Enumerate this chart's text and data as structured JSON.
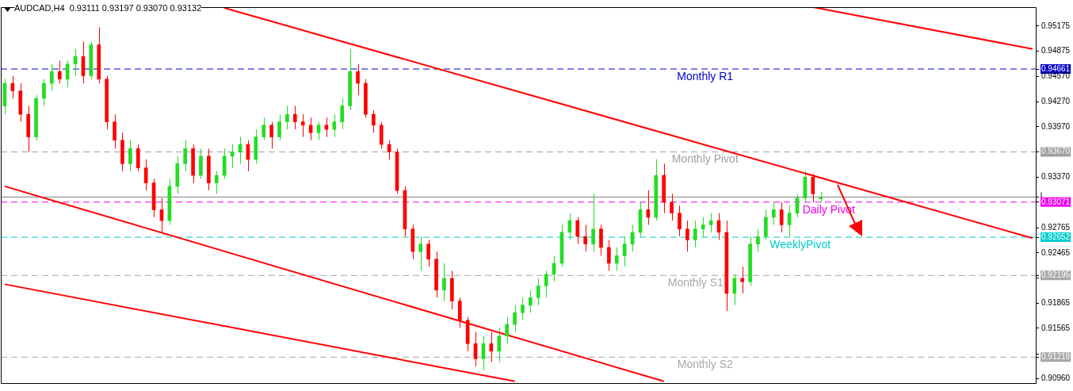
{
  "chart_data": {
    "type": "candlestick",
    "title": "AUDCAD,H4  0.93111 0.93197 0.93070 0.93132",
    "categories": [
      null,
      null,
      null,
      null,
      null,
      null,
      null,
      null,
      null,
      null,
      null,
      null,
      null,
      null,
      null,
      null,
      null,
      null,
      null,
      null,
      null,
      null,
      null,
      null,
      null,
      null,
      null,
      null,
      null,
      null,
      null,
      null,
      null,
      null,
      null,
      null,
      null,
      null,
      null,
      null,
      null,
      null,
      null,
      null,
      null,
      null,
      null,
      null,
      null,
      null,
      null,
      null,
      null,
      null,
      null,
      null,
      null,
      null,
      null,
      null,
      null,
      null,
      null,
      null,
      null,
      null,
      null,
      null,
      null,
      null,
      null,
      null,
      null,
      null,
      null,
      null,
      null,
      null,
      null,
      null,
      null,
      null,
      null,
      null,
      null,
      null,
      null,
      null,
      null,
      null,
      null,
      null,
      null,
      null,
      null,
      null,
      null,
      null,
      null,
      null,
      null,
      null,
      null,
      null,
      null,
      null,
      null,
      null,
      null,
      null,
      null,
      null,
      null,
      null,
      null,
      null,
      null,
      null,
      null,
      null,
      null,
      null,
      null,
      null,
      null,
      null,
      null,
      null,
      null,
      null,
      null,
      null
    ],
    "ohlc": [
      [
        0.9422,
        0.9454,
        0.9412,
        0.9449
      ],
      [
        0.9449,
        0.9458,
        0.9431,
        0.944
      ],
      [
        0.944,
        0.9449,
        0.9403,
        0.9412
      ],
      [
        0.9412,
        0.9422,
        0.9367,
        0.9385
      ],
      [
        0.9385,
        0.9435,
        0.9381,
        0.9431
      ],
      [
        0.9431,
        0.9454,
        0.9422,
        0.9449
      ],
      [
        0.9449,
        0.9472,
        0.944,
        0.9463
      ],
      [
        0.9463,
        0.9476,
        0.9449,
        0.9454
      ],
      [
        0.9454,
        0.9476,
        0.9444,
        0.9472
      ],
      [
        0.9472,
        0.949,
        0.9458,
        0.9481
      ],
      [
        0.9481,
        0.9499,
        0.9449,
        0.9458
      ],
      [
        0.9458,
        0.9499,
        0.9454,
        0.9495
      ],
      [
        0.9495,
        0.9516,
        0.9449,
        0.9454
      ],
      [
        0.9454,
        0.9458,
        0.9394,
        0.9403
      ],
      [
        0.9403,
        0.9412,
        0.9371,
        0.9381
      ],
      [
        0.9381,
        0.939,
        0.9344,
        0.9353
      ],
      [
        0.9353,
        0.9381,
        0.9344,
        0.9371
      ],
      [
        0.9371,
        0.9376,
        0.9344,
        0.9348
      ],
      [
        0.9348,
        0.9358,
        0.9321,
        0.933
      ],
      [
        0.933,
        0.9335,
        0.9289,
        0.9298
      ],
      [
        0.9298,
        0.9312,
        0.9271,
        0.9285
      ],
      [
        0.9285,
        0.9335,
        0.928,
        0.9326
      ],
      [
        0.9326,
        0.9362,
        0.9317,
        0.9353
      ],
      [
        0.9353,
        0.9381,
        0.9344,
        0.9371
      ],
      [
        0.9371,
        0.9376,
        0.933,
        0.9339
      ],
      [
        0.9339,
        0.9371,
        0.9335,
        0.9362
      ],
      [
        0.9362,
        0.9371,
        0.9321,
        0.933
      ],
      [
        0.933,
        0.9344,
        0.9317,
        0.9339
      ],
      [
        0.9339,
        0.9371,
        0.9335,
        0.9362
      ],
      [
        0.9362,
        0.9376,
        0.9348,
        0.9367
      ],
      [
        0.9367,
        0.9385,
        0.9353,
        0.9376
      ],
      [
        0.9376,
        0.9381,
        0.9344,
        0.9358
      ],
      [
        0.9358,
        0.9394,
        0.9353,
        0.9385
      ],
      [
        0.9385,
        0.9408,
        0.9381,
        0.9399
      ],
      [
        0.9399,
        0.9403,
        0.9371,
        0.9385
      ],
      [
        0.9385,
        0.9412,
        0.9381,
        0.9403
      ],
      [
        0.9403,
        0.9422,
        0.9394,
        0.9412
      ],
      [
        0.9412,
        0.9422,
        0.9394,
        0.9403
      ],
      [
        0.9403,
        0.9412,
        0.9385,
        0.9399
      ],
      [
        0.9399,
        0.9408,
        0.9381,
        0.939
      ],
      [
        0.939,
        0.9403,
        0.9381,
        0.9399
      ],
      [
        0.9399,
        0.9408,
        0.9385,
        0.9394
      ],
      [
        0.9394,
        0.9412,
        0.9385,
        0.9403
      ],
      [
        0.9403,
        0.9431,
        0.9394,
        0.9422
      ],
      [
        0.9422,
        0.949,
        0.9417,
        0.9463
      ],
      [
        0.9463,
        0.9472,
        0.9435,
        0.9449
      ],
      [
        0.9449,
        0.9454,
        0.9408,
        0.9412
      ],
      [
        0.9412,
        0.9417,
        0.939,
        0.9399
      ],
      [
        0.9399,
        0.9403,
        0.9371,
        0.9376
      ],
      [
        0.9376,
        0.9381,
        0.9358,
        0.9367
      ],
      [
        0.9367,
        0.9371,
        0.9317,
        0.9321
      ],
      [
        0.9321,
        0.9326,
        0.9266,
        0.9275
      ],
      [
        0.9275,
        0.928,
        0.9239,
        0.9248
      ],
      [
        0.9248,
        0.9266,
        0.9225,
        0.9257
      ],
      [
        0.9257,
        0.9262,
        0.923,
        0.9239
      ],
      [
        0.9239,
        0.9248,
        0.9193,
        0.9202
      ],
      [
        0.9202,
        0.9234,
        0.9189,
        0.9216
      ],
      [
        0.9216,
        0.9225,
        0.9179,
        0.9189
      ],
      [
        0.9189,
        0.9193,
        0.9157,
        0.9166
      ],
      [
        0.9166,
        0.917,
        0.9129,
        0.9138
      ],
      [
        0.9138,
        0.9152,
        0.9111,
        0.912
      ],
      [
        0.912,
        0.9147,
        0.9106,
        0.9138
      ],
      [
        0.9138,
        0.9152,
        0.9116,
        0.9129
      ],
      [
        0.9129,
        0.9157,
        0.9116,
        0.9147
      ],
      [
        0.9147,
        0.917,
        0.9138,
        0.9161
      ],
      [
        0.9161,
        0.9184,
        0.9152,
        0.9175
      ],
      [
        0.9175,
        0.9193,
        0.9166,
        0.9184
      ],
      [
        0.9184,
        0.9202,
        0.9175,
        0.9193
      ],
      [
        0.9193,
        0.9216,
        0.9184,
        0.9207
      ],
      [
        0.9207,
        0.9225,
        0.9193,
        0.9221
      ],
      [
        0.9221,
        0.9243,
        0.9212,
        0.9234
      ],
      [
        0.9234,
        0.928,
        0.923,
        0.9271
      ],
      [
        0.9271,
        0.9294,
        0.9262,
        0.9285
      ],
      [
        0.9285,
        0.9289,
        0.9257,
        0.9266
      ],
      [
        0.9266,
        0.928,
        0.9248,
        0.9257
      ],
      [
        0.9257,
        0.9317,
        0.9248,
        0.9275
      ],
      [
        0.9275,
        0.928,
        0.9243,
        0.9253
      ],
      [
        0.9253,
        0.9262,
        0.9225,
        0.9234
      ],
      [
        0.9234,
        0.9253,
        0.9225,
        0.9243
      ],
      [
        0.9243,
        0.9266,
        0.923,
        0.9257
      ],
      [
        0.9257,
        0.928,
        0.9248,
        0.9271
      ],
      [
        0.9271,
        0.9307,
        0.9266,
        0.9298
      ],
      [
        0.9298,
        0.9321,
        0.928,
        0.9289
      ],
      [
        0.9289,
        0.9358,
        0.9285,
        0.9339
      ],
      [
        0.9339,
        0.9353,
        0.9294,
        0.9307
      ],
      [
        0.9307,
        0.9317,
        0.9285,
        0.9294
      ],
      [
        0.9294,
        0.9303,
        0.9266,
        0.9275
      ],
      [
        0.9275,
        0.9285,
        0.9248,
        0.9262
      ],
      [
        0.9262,
        0.9285,
        0.9253,
        0.9275
      ],
      [
        0.9275,
        0.9289,
        0.9266,
        0.928
      ],
      [
        0.928,
        0.9294,
        0.9271,
        0.9285
      ],
      [
        0.9285,
        0.9294,
        0.9262,
        0.9271
      ],
      [
        0.9271,
        0.9285,
        0.9177,
        0.9198
      ],
      [
        0.9198,
        0.9221,
        0.9184,
        0.9216
      ],
      [
        0.9216,
        0.923,
        0.9198,
        0.9212
      ],
      [
        0.9212,
        0.9266,
        0.9207,
        0.9257
      ],
      [
        0.9257,
        0.9275,
        0.9248,
        0.9266
      ],
      [
        0.9266,
        0.9298,
        0.9262,
        0.9289
      ],
      [
        0.9289,
        0.9307,
        0.928,
        0.9298
      ],
      [
        0.9298,
        0.9307,
        0.9271,
        0.928
      ],
      [
        0.928,
        0.9303,
        0.9266,
        0.9294
      ],
      [
        0.9294,
        0.9317,
        0.9289,
        0.9312
      ],
      [
        0.9312,
        0.9344,
        0.9307,
        0.9337
      ],
      [
        0.9337,
        0.9341,
        0.9307,
        0.9317
      ],
      [
        0.93111,
        0.93197,
        0.9307,
        0.93132
      ],
      null,
      null,
      null,
      null,
      null,
      null,
      null,
      null,
      null,
      null,
      null,
      null,
      null,
      null,
      null,
      null,
      null,
      null,
      null,
      null,
      null,
      null,
      null,
      null,
      null,
      null,
      null
    ],
    "series": [
      {
        "type": "line",
        "color": "#ff0000",
        "values": [
          null,
          null,
          null,
          null,
          null,
          null,
          null,
          null,
          null,
          null,
          null,
          null,
          null,
          null,
          null,
          null,
          null,
          null,
          null,
          null,
          null,
          null,
          null,
          null,
          null,
          null,
          null,
          null,
          0.9539,
          null,
          null,
          null,
          null,
          null,
          null,
          null,
          null,
          null,
          null,
          null,
          null,
          null,
          null,
          null,
          null,
          null,
          null,
          null,
          null,
          null,
          null,
          null,
          null,
          null,
          null,
          null,
          null,
          null,
          null,
          null,
          null,
          null,
          null,
          null,
          null,
          null,
          null,
          null,
          null,
          null,
          null,
          null,
          null,
          null,
          null,
          null,
          null,
          null,
          null,
          null,
          null,
          null,
          null,
          null,
          null,
          null,
          null,
          null,
          null,
          null,
          null,
          null,
          null,
          null,
          null,
          null,
          null,
          null,
          null,
          null,
          null,
          null,
          null,
          null,
          null,
          null,
          null,
          null,
          null,
          null,
          null,
          null,
          null,
          null,
          null,
          null,
          null,
          null,
          null,
          null,
          null,
          null,
          null,
          null,
          null,
          null,
          null,
          null,
          null,
          null,
          null,
          0.9264
        ]
      },
      {
        "type": "line",
        "color": "#ff0000",
        "values": [
          null,
          null,
          null,
          null,
          null,
          null,
          null,
          null,
          null,
          null,
          null,
          null,
          null,
          null,
          null,
          null,
          null,
          null,
          null,
          null,
          null,
          null,
          null,
          null,
          null,
          null,
          null,
          null,
          null,
          null,
          null,
          null,
          null,
          null,
          null,
          null,
          null,
          null,
          null,
          null,
          null,
          null,
          null,
          null,
          null,
          null,
          null,
          null,
          null,
          null,
          null,
          null,
          null,
          null,
          null,
          null,
          null,
          null,
          null,
          null,
          null,
          null,
          null,
          null,
          null,
          null,
          null,
          null,
          null,
          null,
          null,
          null,
          null,
          null,
          null,
          null,
          null,
          null,
          null,
          null,
          null,
          null,
          null,
          null,
          null,
          null,
          null,
          null,
          null,
          null,
          null,
          null,
          null,
          null,
          null,
          null,
          null,
          null,
          null,
          null,
          null,
          null,
          null,
          0.954,
          null,
          null,
          null,
          null,
          null,
          null,
          null,
          null,
          null,
          null,
          null,
          null,
          null,
          null,
          null,
          null,
          null,
          null,
          null,
          null,
          null,
          null,
          null,
          null,
          null,
          null,
          null,
          0.949
        ]
      },
      {
        "type": "line",
        "color": "#ff0000",
        "values": [
          0.9326,
          null,
          null,
          null,
          null,
          null,
          null,
          null,
          null,
          null,
          null,
          null,
          null,
          null,
          null,
          null,
          null,
          null,
          null,
          null,
          null,
          null,
          null,
          null,
          null,
          null,
          null,
          null,
          null,
          null,
          null,
          null,
          null,
          null,
          null,
          null,
          null,
          null,
          null,
          null,
          null,
          null,
          null,
          null,
          null,
          null,
          null,
          null,
          null,
          null,
          null,
          null,
          null,
          null,
          null,
          null,
          null,
          null,
          null,
          null,
          null,
          null,
          null,
          null,
          null,
          null,
          null,
          null,
          null,
          null,
          null,
          null,
          null,
          null,
          null,
          null,
          null,
          null,
          null,
          null,
          null,
          null,
          null,
          null,
          0.9093,
          null,
          null,
          null,
          null,
          null,
          null,
          null,
          null,
          null,
          null,
          null,
          null,
          null,
          null,
          null,
          null,
          null,
          null,
          null,
          null,
          null,
          null,
          null,
          null,
          null,
          null,
          null,
          null,
          null,
          null,
          null,
          null,
          null,
          null,
          null,
          null,
          null,
          null,
          null,
          null,
          null,
          null,
          null,
          null,
          null,
          null,
          null
        ]
      },
      {
        "type": "line",
        "color": "#ff0000",
        "values": [
          0.9209,
          null,
          null,
          null,
          null,
          null,
          null,
          null,
          null,
          null,
          null,
          null,
          null,
          null,
          null,
          null,
          null,
          null,
          null,
          null,
          null,
          null,
          null,
          null,
          null,
          null,
          null,
          null,
          null,
          null,
          null,
          null,
          null,
          null,
          null,
          null,
          null,
          null,
          null,
          null,
          null,
          null,
          null,
          null,
          null,
          null,
          null,
          null,
          null,
          null,
          null,
          null,
          null,
          null,
          null,
          null,
          null,
          null,
          null,
          null,
          null,
          null,
          null,
          null,
          null,
          0.9093,
          null,
          null,
          null,
          null,
          null,
          null,
          null,
          null,
          null,
          null,
          null,
          null,
          null,
          null,
          null,
          null,
          null,
          null,
          null,
          null,
          null,
          null,
          null,
          null,
          null,
          null,
          null,
          null,
          null,
          null,
          null,
          null,
          null,
          null,
          null,
          null,
          null,
          null,
          null,
          null,
          null,
          null,
          null,
          null,
          null,
          null,
          null,
          null,
          null,
          null,
          null,
          null,
          null,
          null,
          null,
          null,
          null,
          null,
          null,
          null,
          null,
          null,
          null,
          null,
          null,
          null
        ]
      }
    ],
    "ylim": [
      0.909,
      0.954
    ],
    "yticks": [
      {
        "value": 0.95175,
        "label": "0.95175"
      },
      {
        "value": 0.94875,
        "label": "0.94875"
      },
      {
        "value": 0.94661,
        "label": "0.94661"
      },
      {
        "value": 0.9457,
        "label": "0.94570"
      },
      {
        "value": 0.9427,
        "label": "0.94270"
      },
      {
        "value": 0.9397,
        "label": "0.93970"
      },
      {
        "value": 0.9367,
        "label": "0.93670"
      },
      {
        "value": 0.9337,
        "label": "0.93370"
      },
      {
        "value": 0.93132,
        "label": null
      },
      {
        "value": 0.93071,
        "label": "0.93071"
      },
      {
        "value": 0.9307,
        "label": null
      },
      {
        "value": 0.92765,
        "label": "0.92765"
      },
      {
        "value": 0.92652,
        "label": "0.92652"
      },
      {
        "value": 0.92465,
        "label": "0.92465"
      },
      {
        "value": 0.92195,
        "label": "0.92195"
      },
      {
        "value": 0.92165,
        "label": null
      },
      {
        "value": 0.91865,
        "label": "0.91865"
      },
      {
        "value": 0.91565,
        "label": "0.91565"
      },
      {
        "value": 0.9126,
        "label": null
      },
      {
        "value": 0.91219,
        "label": "0.91219"
      },
      {
        "value": 0.9096,
        "label": "0.90960"
      }
    ],
    "ref_lines": [
      {
        "axis": "y",
        "value": 0.94661,
        "label": "Monthly R1",
        "color": "#0000cc",
        "line_style": "dashed"
      },
      {
        "axis": "y",
        "value": 0.9367,
        "label": "Monthly Pivot",
        "color": "#a0a0a0",
        "line_style": "dashed"
      },
      {
        "axis": "y",
        "value": 0.93132,
        "color": "#808080",
        "line_style": "solid"
      },
      {
        "axis": "y",
        "value": 0.93071,
        "label": "Daily Pivot",
        "color": "#ee00ee",
        "line_style": "dashed"
      },
      {
        "axis": "y",
        "value": 0.92652,
        "label": "WeeklyPivot",
        "color": "#00cccc",
        "line_style": "dashed"
      },
      {
        "axis": "y",
        "value": 0.92195,
        "label": "Monthly S1",
        "color": "#a8a8a8",
        "line_style": "dashed"
      },
      {
        "axis": "y",
        "value": 0.91219,
        "label": "Monthly S2",
        "color": "#a8a8a8",
        "line_style": "dashed"
      }
    ],
    "tick_labels": "y",
    "grid": false,
    "legend": false
  }
}
